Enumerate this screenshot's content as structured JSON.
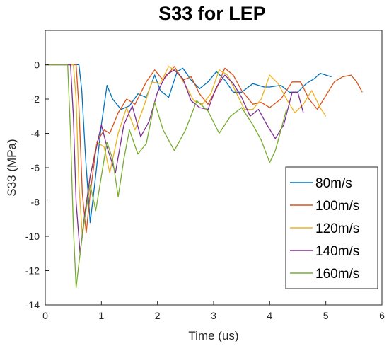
{
  "chart_data": {
    "type": "line",
    "title": "S33 for LEP",
    "xlabel": "Time (us)",
    "ylabel": "S33 (MPa)",
    "xlim": [
      0,
      6
    ],
    "ylim": [
      -14,
      2
    ],
    "xticks": [
      0,
      1,
      2,
      3,
      4,
      5,
      6
    ],
    "yticks": [
      0,
      -2,
      -4,
      -6,
      -8,
      -10,
      -12,
      -14
    ],
    "xtick_labels": [
      "0",
      "1",
      "2",
      "3",
      "4",
      "5",
      "6"
    ],
    "ytick_labels": [
      "0",
      "-2",
      "-4",
      "-6",
      "-8",
      "-10",
      "-12",
      "-14"
    ],
    "grid": false,
    "legend_position": "lower-right",
    "series": [
      {
        "name": "80m/s",
        "color": "#0072BD",
        "x": [
          0,
          0.6,
          0.65,
          0.72,
          0.8,
          0.88,
          1.0,
          1.1,
          1.2,
          1.35,
          1.5,
          1.65,
          1.8,
          1.95,
          2.05,
          2.2,
          2.35,
          2.45,
          2.6,
          2.75,
          2.9,
          3.05,
          3.2,
          3.35,
          3.5,
          3.7,
          3.9,
          4.0,
          4.2,
          4.35,
          4.5,
          4.65,
          4.8,
          4.9,
          5.1
        ],
        "y": [
          0,
          0,
          -1.5,
          -5.5,
          -9.2,
          -7.0,
          -3.5,
          -1.2,
          -2.0,
          -2.6,
          -2.4,
          -1.7,
          -1.9,
          -0.6,
          -1.5,
          -1.9,
          -0.4,
          -0.2,
          -0.9,
          -1.4,
          -1.0,
          -0.4,
          -0.9,
          -1.6,
          -1.6,
          -1.1,
          -1.3,
          -1.3,
          -1.2,
          -1.6,
          -1.6,
          -1.1,
          -0.8,
          -0.5,
          -0.7
        ]
      },
      {
        "name": "100m/s",
        "color": "#D95319",
        "x": [
          0,
          0.55,
          0.6,
          0.66,
          0.73,
          0.8,
          0.92,
          1.05,
          1.15,
          1.3,
          1.45,
          1.6,
          1.8,
          1.95,
          2.1,
          2.3,
          2.45,
          2.6,
          2.75,
          2.9,
          3.05,
          3.2,
          3.35,
          3.5,
          3.7,
          3.85,
          4.0,
          4.2,
          4.4,
          4.55,
          4.7,
          4.85,
          5.0,
          5.15,
          5.3,
          5.45,
          5.55,
          5.65
        ],
        "y": [
          0,
          0,
          -2.5,
          -7.5,
          -9.8,
          -7.5,
          -4.5,
          -3.8,
          -4.0,
          -2.8,
          -2.0,
          -2.3,
          -1.0,
          -0.3,
          -0.9,
          -0.1,
          -0.9,
          -0.7,
          -1.7,
          -2.3,
          -1.4,
          -0.2,
          -0.6,
          -1.5,
          -2.3,
          -2.2,
          -2.5,
          -2.0,
          -1.0,
          -1.0,
          -2.0,
          -2.6,
          -1.8,
          -1.0,
          -0.7,
          -0.6,
          -1.0,
          -1.6
        ]
      },
      {
        "name": "120m/s",
        "color": "#EDB120",
        "x": [
          0,
          0.5,
          0.55,
          0.6,
          0.66,
          0.72,
          0.8,
          0.92,
          1.05,
          1.15,
          1.3,
          1.45,
          1.6,
          1.75,
          1.9,
          2.05,
          2.2,
          2.35,
          2.5,
          2.65,
          2.8,
          2.95,
          3.1,
          3.25,
          3.4,
          3.55,
          3.7,
          3.85,
          4.0,
          4.15,
          4.3,
          4.45,
          4.6,
          4.75,
          4.9,
          5.0
        ],
        "y": [
          0,
          0,
          -2.0,
          -7.0,
          -10.0,
          -8.5,
          -6.5,
          -4.5,
          -4.8,
          -6.3,
          -4.0,
          -2.5,
          -3.8,
          -2.5,
          -1.0,
          -1.1,
          -0.1,
          -0.4,
          -1.2,
          -2.1,
          -2.3,
          -1.7,
          -0.3,
          -0.6,
          -1.6,
          -2.6,
          -2.6,
          -2.0,
          -0.6,
          -1.1,
          -2.0,
          -2.8,
          -2.3,
          -1.5,
          -2.5,
          -3.0
        ]
      },
      {
        "name": "140m/s",
        "color": "#7E2F8E",
        "x": [
          0,
          0.45,
          0.5,
          0.55,
          0.62,
          0.7,
          0.8,
          0.9,
          1.0,
          1.1,
          1.25,
          1.4,
          1.55,
          1.7,
          1.85,
          2.0,
          2.15,
          2.3,
          2.45,
          2.6,
          2.75,
          2.9,
          3.05,
          3.2,
          3.35,
          3.5,
          3.65,
          3.8,
          3.95,
          4.1,
          4.25,
          4.4,
          4.5,
          4.6
        ],
        "y": [
          0,
          0,
          -3.0,
          -8.0,
          -11.0,
          -8.8,
          -6.5,
          -5.0,
          -3.5,
          -4.8,
          -6.3,
          -3.5,
          -2.4,
          -4.2,
          -3.3,
          -1.6,
          -0.6,
          -0.3,
          -0.8,
          -2.1,
          -2.5,
          -2.6,
          -1.3,
          -0.6,
          -1.1,
          -1.9,
          -3.0,
          -2.6,
          -3.5,
          -4.3,
          -3.5,
          -1.6,
          -1.6,
          -2.8
        ]
      },
      {
        "name": "160m/s",
        "color": "#77AC30",
        "x": [
          0,
          0.4,
          0.45,
          0.5,
          0.55,
          0.62,
          0.7,
          0.8,
          0.9,
          1.0,
          1.1,
          1.2,
          1.3,
          1.4,
          1.5,
          1.65,
          1.8,
          1.95,
          2.1,
          2.3,
          2.5,
          2.7,
          2.9,
          3.1,
          3.3,
          3.5,
          3.7,
          3.85,
          4.0,
          4.1,
          4.2,
          4.3
        ],
        "y": [
          0,
          0,
          -4.0,
          -9.5,
          -13.0,
          -11.0,
          -9.0,
          -7.0,
          -8.5,
          -6.5,
          -4.5,
          -5.5,
          -7.7,
          -5.5,
          -3.8,
          -5.2,
          -4.6,
          -2.2,
          -3.8,
          -5.0,
          -3.8,
          -2.1,
          -2.7,
          -4.0,
          -3.0,
          -2.5,
          -3.5,
          -4.4,
          -5.7,
          -5.0,
          -3.8,
          -2.6
        ]
      }
    ]
  }
}
